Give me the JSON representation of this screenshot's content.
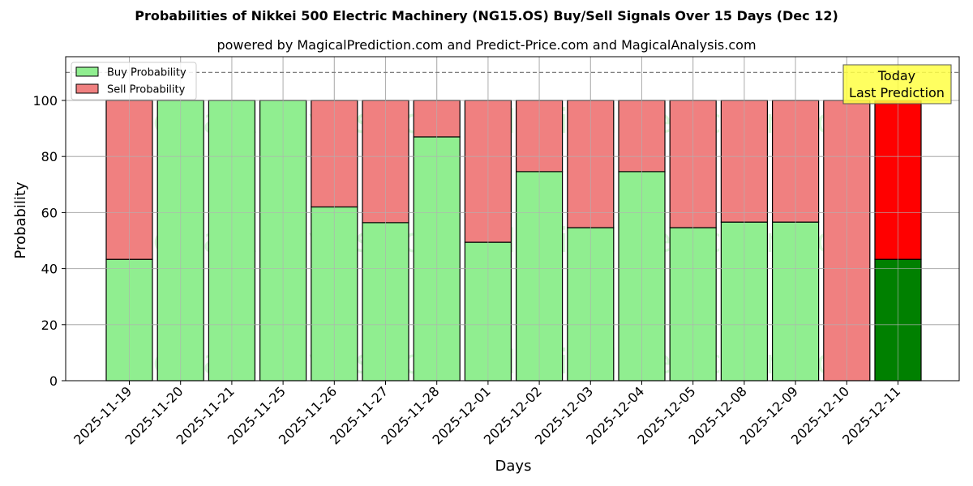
{
  "chart_data": {
    "type": "bar",
    "stacked": true,
    "title": "Probabilities of Nikkei 500 Electric Machinery (NG15.OS) Buy/Sell Signals Over 15 Days (Dec 12)",
    "subtitle": "powered by MagicalPrediction.com and Predict-Price.com and MagicalAnalysis.com",
    "xlabel": "Days",
    "ylabel": "Probability",
    "ylim": [
      0,
      115
    ],
    "yticks": [
      0,
      20,
      40,
      60,
      80,
      100
    ],
    "grid": true,
    "reference_line": {
      "y": 110,
      "style": "dashed",
      "color": "#808080"
    },
    "categories": [
      "2025-11-19",
      "2025-11-20",
      "2025-11-21",
      "2025-11-25",
      "2025-11-26",
      "2025-11-27",
      "2025-11-28",
      "2025-12-01",
      "2025-12-02",
      "2025-12-03",
      "2025-12-04",
      "2025-12-05",
      "2025-12-08",
      "2025-12-09",
      "2025-12-10",
      "2025-12-11"
    ],
    "series": [
      {
        "name": "Buy Probability",
        "color": "#90ee90",
        "highlight_color": "#008000",
        "values": [
          43.3,
          100,
          100,
          100,
          62.0,
          56.4,
          87.0,
          49.4,
          74.6,
          54.6,
          74.6,
          54.6,
          56.6,
          56.6,
          0.0,
          43.3
        ]
      },
      {
        "name": "Sell Probability",
        "color": "#f08080",
        "highlight_color": "#ff0000",
        "values": [
          56.7,
          0,
          0,
          0,
          38.0,
          43.6,
          13.0,
          50.6,
          25.4,
          45.4,
          25.4,
          45.4,
          43.4,
          43.4,
          100.0,
          56.7
        ]
      }
    ],
    "highlight_index": 15,
    "legend": {
      "position": "upper left",
      "entries": [
        "Buy Probability",
        "Sell Probability"
      ]
    },
    "annotation": {
      "lines": [
        "Today",
        "Last Prediction"
      ],
      "background": "#ffff44"
    },
    "watermarks": [
      "MagicalAnalysis.com",
      "MagicalPrediction.com"
    ]
  }
}
